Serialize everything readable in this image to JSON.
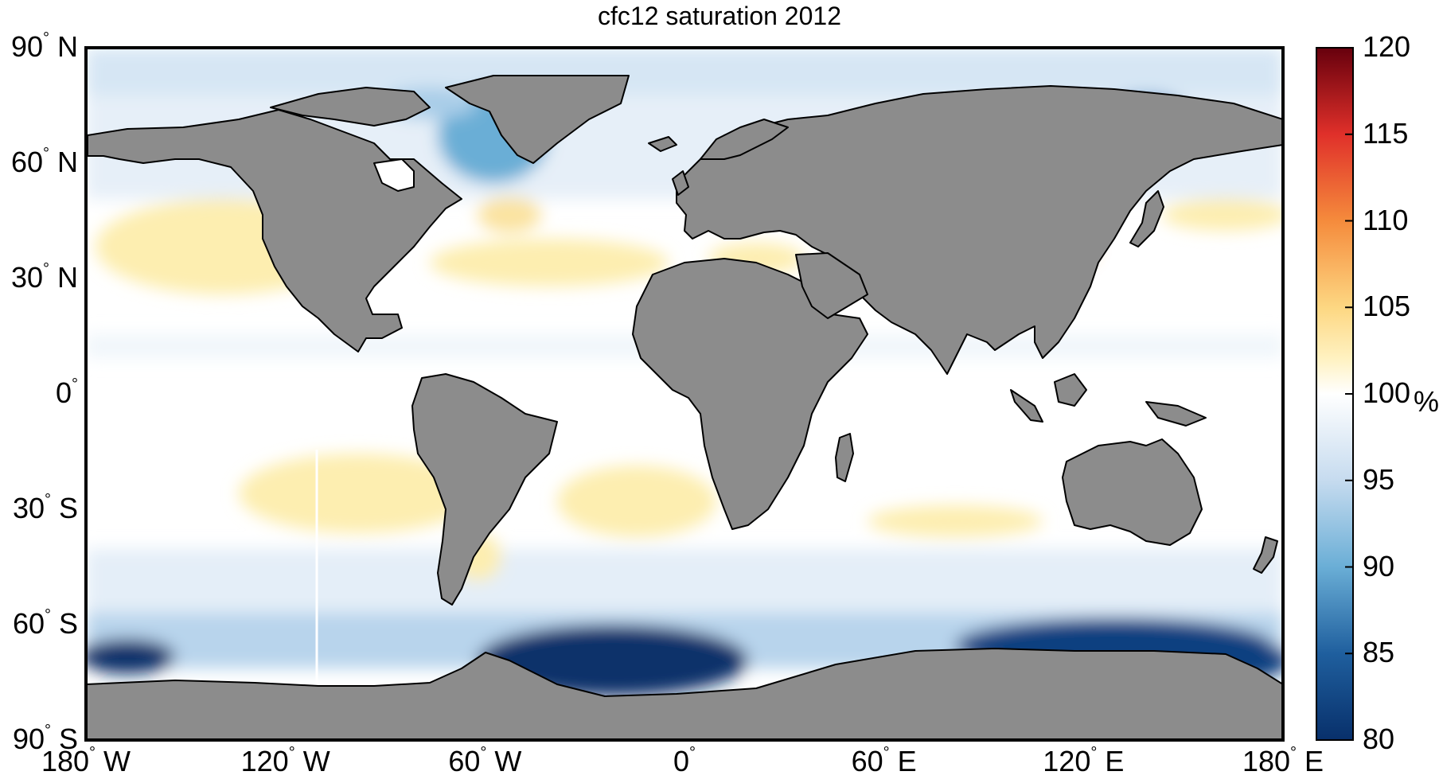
{
  "title": "cfc12 saturation 2012",
  "colors": {
    "land": "#8c8c8c",
    "ocean_neutral": "#ffffff",
    "light_blue": "#dbe8f4",
    "mid_blue": "#8fc0e0",
    "deep_blue": "#1f5f9e",
    "darkest_blue": "#08306b",
    "light_yellow": "#fdeeb0",
    "orange": "#f59a4a",
    "frame": "#000000"
  },
  "lat_labels": [
    {
      "deg": "90",
      "hemi": "N"
    },
    {
      "deg": "60",
      "hemi": "N"
    },
    {
      "deg": "30",
      "hemi": "N"
    },
    {
      "deg": "0",
      "hemi": ""
    },
    {
      "deg": "30",
      "hemi": "S"
    },
    {
      "deg": "60",
      "hemi": "S"
    },
    {
      "deg": "90",
      "hemi": "S"
    }
  ],
  "lon_labels": [
    {
      "deg": "180",
      "hemi": "W"
    },
    {
      "deg": "120",
      "hemi": "W"
    },
    {
      "deg": "60",
      "hemi": "W"
    },
    {
      "deg": "0",
      "hemi": ""
    },
    {
      "deg": "60",
      "hemi": "E"
    },
    {
      "deg": "120",
      "hemi": "E"
    },
    {
      "deg": "180",
      "hemi": "E"
    }
  ],
  "colorbar": {
    "min": 80,
    "max": 120,
    "ticks": [
      "120",
      "115",
      "110",
      "105",
      "100",
      "95",
      "90",
      "85",
      "80"
    ],
    "unit": "%",
    "stops": [
      {
        "value": 80,
        "color": "#08306b"
      },
      {
        "value": 85,
        "color": "#1f5f9e"
      },
      {
        "value": 90,
        "color": "#6aaed6"
      },
      {
        "value": 95,
        "color": "#c6dbef"
      },
      {
        "value": 100,
        "color": "#ffffff"
      },
      {
        "value": 102,
        "color": "#fff2c2"
      },
      {
        "value": 105,
        "color": "#fdd782"
      },
      {
        "value": 110,
        "color": "#f58b3c"
      },
      {
        "value": 115,
        "color": "#e0302a"
      },
      {
        "value": 120,
        "color": "#67000d"
      }
    ]
  }
}
